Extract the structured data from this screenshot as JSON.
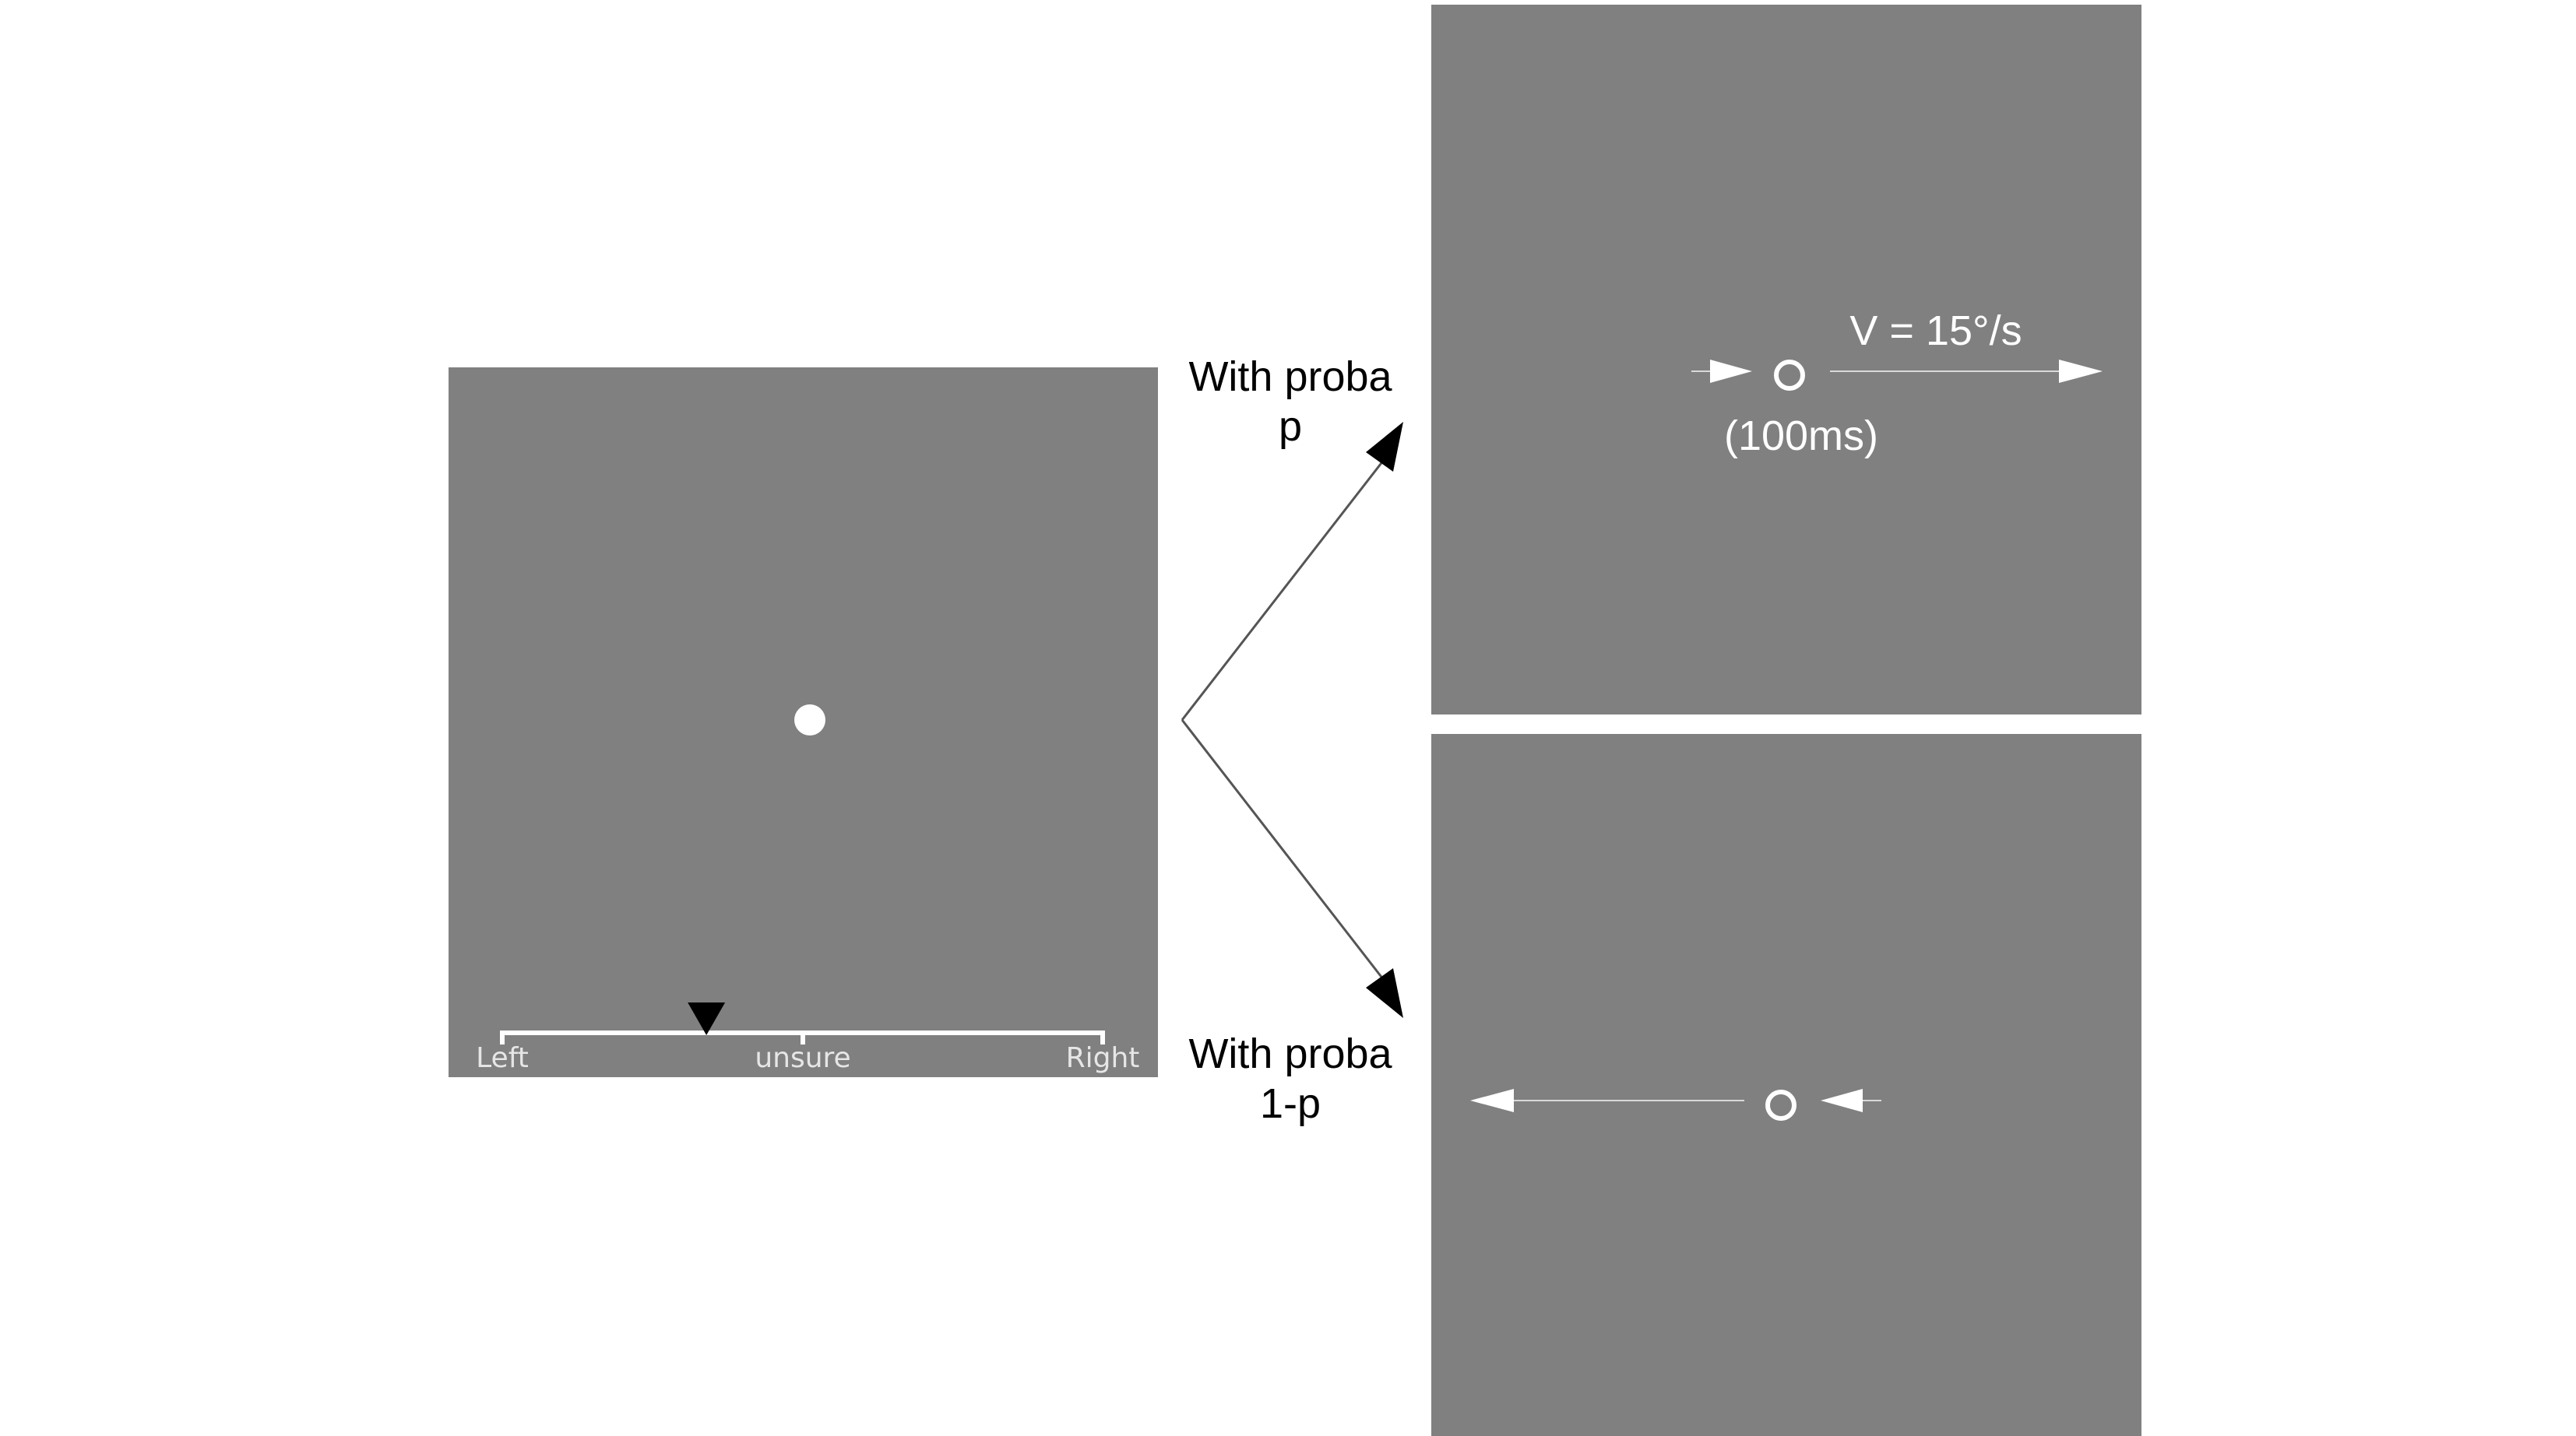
{
  "colors": {
    "background": "#ffffff",
    "screen": "#808080",
    "stimulus": "#ffffff",
    "scale_text": "#e6e6e6",
    "ink": "#000000",
    "link_line": "#555555",
    "trajectory": "#d9d9d9"
  },
  "left_screen": {
    "scale": {
      "left_label": "Left",
      "center_label": "unsure",
      "right_label": "Right",
      "cursor_icon": "triangle-down-icon",
      "cursor_value": 0.34
    }
  },
  "branches": {
    "upper_label_line1": "With proba",
    "upper_label_line2": "p",
    "lower_label_line1": "With proba",
    "lower_label_line2": "1-p"
  },
  "upper_screen": {
    "velocity_label": "V = 15°/s",
    "duration_label": "(100ms)",
    "direction": "right"
  },
  "lower_screen": {
    "direction": "left"
  }
}
